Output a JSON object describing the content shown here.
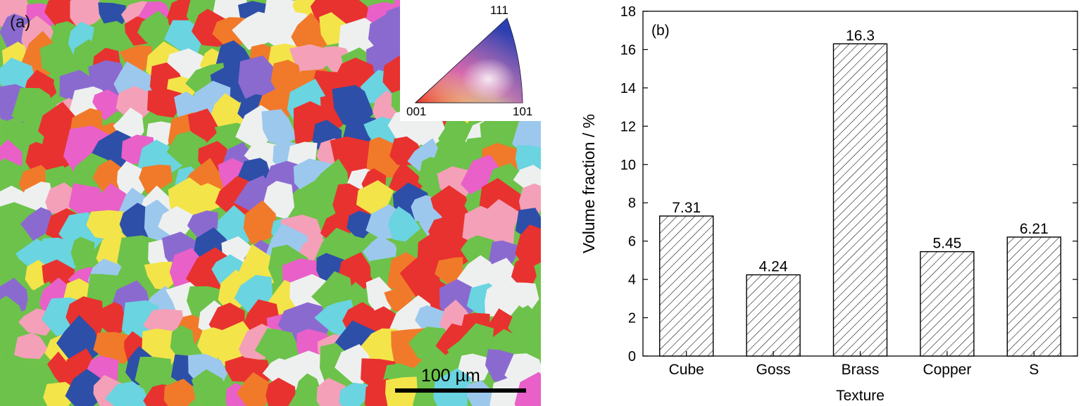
{
  "panel_a": {
    "label": "(a)",
    "ipf_key": {
      "top": "111",
      "left": "001",
      "right": "101"
    },
    "scale_bar_label": "100 µm",
    "colors": {
      "red": "#e8322f",
      "green": "#6cc24a",
      "blue": "#2d4fa8",
      "purple": "#8b6ad0",
      "magenta": "#e860c8",
      "yellow": "#f3e44a",
      "cyan": "#6ad4e0",
      "orange": "#f07a2a",
      "pink": "#f4a0b8",
      "lightblue": "#9cc8ee",
      "white": "#eef0f0"
    }
  },
  "chart_data": {
    "type": "bar",
    "panel_label": "(b)",
    "categories": [
      "Cube",
      "Goss",
      "Brass",
      "Copper",
      "S"
    ],
    "values": [
      7.31,
      4.24,
      16.3,
      5.45,
      6.21
    ],
    "data_labels": [
      "7.31",
      "4.24",
      "16.3",
      "5.45",
      "6.21"
    ],
    "xlabel": "Texture",
    "ylabel": "Volume fraction / %",
    "ylim": [
      0,
      18
    ],
    "yticks": [
      0,
      2,
      4,
      6,
      8,
      10,
      12,
      14,
      16,
      18
    ],
    "bar_fill": "hatched",
    "grid": false
  }
}
